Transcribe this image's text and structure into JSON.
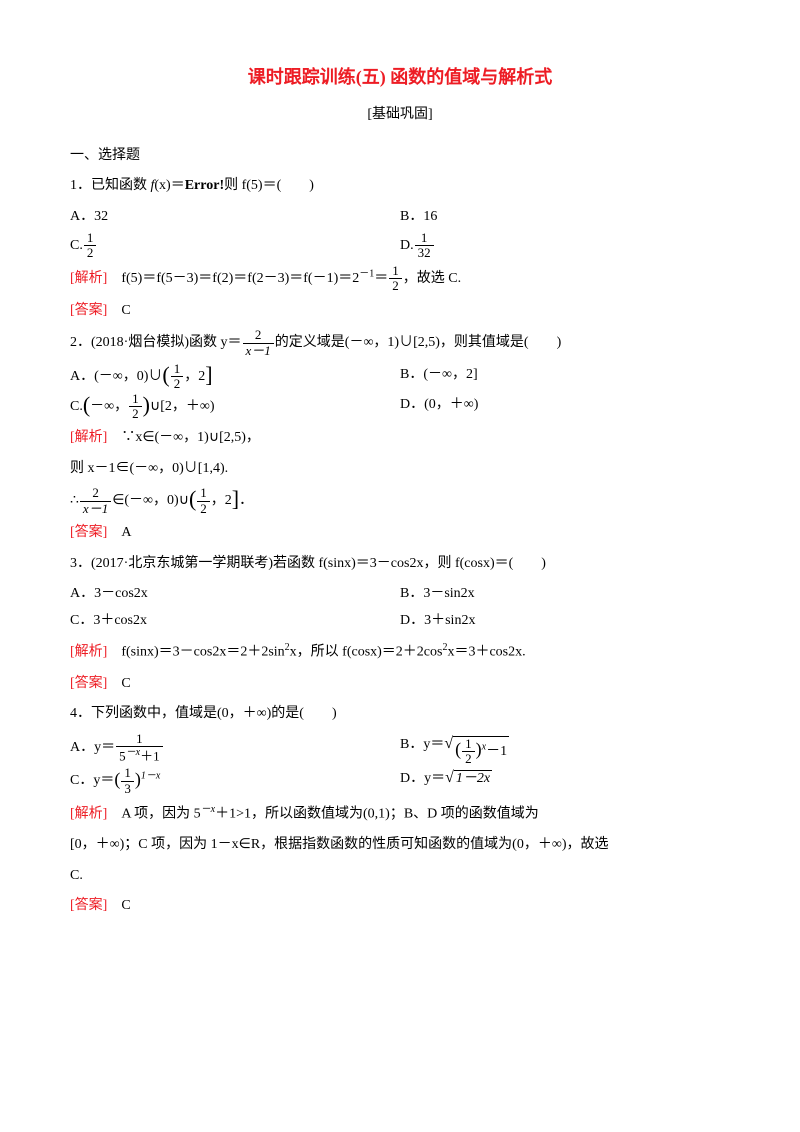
{
  "title": "课时跟踪训练(五)  函数的值域与解析式",
  "subtitle": "[基础巩固]",
  "section1": "一、选择题",
  "q1": {
    "stem_pre": "1．已知函数 ",
    "stem_fx": "f",
    "stem_x": "(x)＝",
    "stem_err": "Error!",
    "stem_post": "则 f(5)＝(　　)",
    "optA": "A．32",
    "optB": "B．16",
    "optC_pre": "C.",
    "optC_num": "1",
    "optC_den": "2",
    "optD_pre": "D.",
    "optD_num": "1",
    "optD_den": "32",
    "analysis_label": "[解析]",
    "analysis_text_a": "　f(5)＝f(5－3)＝f(2)＝f(2－3)＝f(－1)＝2",
    "analysis_exp": "－1",
    "analysis_eq": "＝",
    "analysis_num": "1",
    "analysis_den": "2",
    "analysis_tail": "，故选 C.",
    "answer_label": "[答案]",
    "answer": "　C"
  },
  "q2": {
    "stem_a": "2．(2018·烟台模拟)函数 y＝",
    "stem_num": "2",
    "stem_den": "x－1",
    "stem_b": "的定义域是(－∞，1)∪[2,5)，则其值域是(　　)",
    "optA_a": "A．(－∞，0)∪",
    "optA_lb": "(",
    "optA_num": "1",
    "optA_den": "2",
    "optA_mid": "，2",
    "optA_rb": "]",
    "optB": "B．(－∞，2]",
    "optC_lb": "(",
    "optC_pre": "C.",
    "optC_neg": "－∞，",
    "optC_num": "1",
    "optC_den": "2",
    "optC_rb": ")",
    "optC_tail": "∪[2，＋∞)",
    "optD": "D．(0，＋∞)",
    "analysis_label": "[解析]",
    "ana1": "　∵x∈(－∞，1)∪[2,5)，",
    "ana2": "则 x－1∈(－∞，0)∪[1,4).",
    "ana3a": "∴",
    "ana3_num": "2",
    "ana3_den": "x－1",
    "ana3b": "∈(－∞，0)∪",
    "ana3_lb": "(",
    "ana3_fnum": "1",
    "ana3_fden": "2",
    "ana3_mid": "，2",
    "ana3_rb": "]",
    "ana3_tail": "．",
    "answer_label": "[答案]",
    "answer": "　A"
  },
  "q3": {
    "stem": "3．(2017·北京东城第一学期联考)若函数 f(sinx)＝3－cos2x，则 f(cosx)＝(　　)",
    "optA": "A．3－cos2x",
    "optB": "B．3－sin2x",
    "optC": "C．3＋cos2x",
    "optD": "D．3＋sin2x",
    "analysis_label": "[解析]",
    "analysis_a": "　f(sinx)＝3－cos2x＝2＋2sin",
    "exp2a": "2",
    "analysis_b": "x，所以 f(cosx)＝2＋2cos",
    "exp2b": "2",
    "analysis_c": "x＝3＋cos2x.",
    "answer_label": "[答案]",
    "answer": "　C"
  },
  "q4": {
    "stem": "4．下列函数中，值域是(0，＋∞)的是(　　)",
    "optA_pre": "A．y＝",
    "optA_num": "1",
    "optA_den_a": "5",
    "optA_den_exp": "－x",
    "optA_den_b": "＋1",
    "optB_pre": "B．y＝",
    "optB_inner_lb": "(",
    "optB_inner_num": "1",
    "optB_inner_den": "2",
    "optB_inner_rb": ")",
    "optB_inner_exp": "x",
    "optB_tail": "－1",
    "optC_pre": "C．y＝",
    "optC_lb": "(",
    "optC_num": "1",
    "optC_den": "3",
    "optC_rb": ")",
    "optC_exp": "1－x",
    "optD_pre": "D．y＝",
    "optD_body": "1－2x",
    "analysis_label": "[解析]",
    "ana_a": "　A 项，因为 5",
    "ana_exp": "－x",
    "ana_b": "＋1>1，所以函数值域为(0,1)；B、D 项的函数值域为",
    "ana2": "[0，＋∞)；C 项，因为 1－x∈R，根据指数函数的性质可知函数的值域为(0，＋∞)，故选",
    "ana3": "C.",
    "answer_label": "[答案]",
    "answer": "　C"
  },
  "colors": {
    "title": "#ed1c24",
    "label": "#ed1c24",
    "text": "#000000",
    "bg": "#ffffff"
  }
}
